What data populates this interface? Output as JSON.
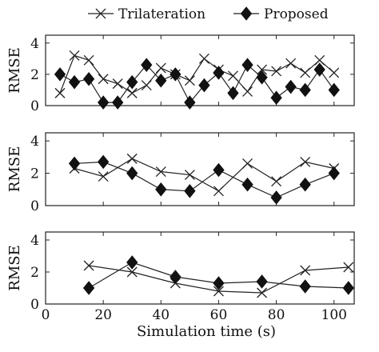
{
  "chart_data": {
    "type": "line",
    "xlabel": "Simulation time (s)",
    "x_ticks": [
      0,
      20,
      40,
      60,
      80,
      100
    ],
    "xlim": [
      0,
      107
    ],
    "legend": {
      "placement": "top-center",
      "entries": [
        {
          "name": "Trilateration",
          "marker": "cross"
        },
        {
          "name": "Proposed",
          "marker": "diamond"
        }
      ]
    },
    "panels": [
      {
        "ylabel": "RMSE",
        "ylim": [
          0,
          4.5
        ],
        "y_ticks": [
          0,
          2,
          4
        ],
        "series": [
          {
            "name": "Trilateration",
            "marker": "cross",
            "x": [
              5,
              10,
              15,
              20,
              25,
              30,
              35,
              40,
              45,
              50,
              55,
              60,
              65,
              70,
              75,
              80,
              85,
              90,
              95,
              100
            ],
            "y": [
              0.8,
              3.2,
              2.9,
              1.7,
              1.4,
              0.8,
              1.3,
              2.4,
              2.0,
              1.6,
              3.0,
              2.3,
              1.9,
              0.9,
              2.3,
              2.2,
              2.7,
              2.1,
              2.9,
              2.1
            ]
          },
          {
            "name": "Proposed",
            "marker": "diamond",
            "x": [
              5,
              10,
              15,
              20,
              25,
              30,
              35,
              40,
              45,
              50,
              55,
              60,
              65,
              70,
              75,
              80,
              85,
              90,
              95,
              100
            ],
            "y": [
              2.0,
              1.5,
              1.7,
              0.2,
              0.2,
              1.5,
              2.6,
              1.6,
              2.0,
              0.2,
              1.3,
              2.1,
              0.8,
              2.6,
              1.8,
              0.5,
              1.2,
              1.0,
              2.3,
              1.0
            ]
          }
        ]
      },
      {
        "ylabel": "RMSE",
        "ylim": [
          0,
          4.5
        ],
        "y_ticks": [
          0,
          2,
          4
        ],
        "series": [
          {
            "name": "Trilateration",
            "marker": "cross",
            "x": [
              10,
              20,
              30,
              40,
              50,
              60,
              70,
              80,
              90,
              100
            ],
            "y": [
              2.3,
              1.8,
              2.9,
              2.1,
              1.9,
              0.9,
              2.6,
              1.5,
              2.7,
              2.3
            ]
          },
          {
            "name": "Proposed",
            "marker": "diamond",
            "x": [
              10,
              20,
              30,
              40,
              50,
              60,
              70,
              80,
              90,
              100
            ],
            "y": [
              2.6,
              2.7,
              2.0,
              1.0,
              0.9,
              2.2,
              1.3,
              0.5,
              1.3,
              2.0
            ]
          }
        ]
      },
      {
        "ylabel": "RMSE",
        "ylim": [
          0,
          4.5
        ],
        "y_ticks": [
          0,
          2,
          4
        ],
        "series": [
          {
            "name": "Trilateration",
            "marker": "cross",
            "x": [
              15,
              30,
              45,
              60,
              75,
              90,
              105
            ],
            "y": [
              2.4,
              2.0,
              1.3,
              0.8,
              0.7,
              2.1,
              2.3
            ]
          },
          {
            "name": "Proposed",
            "marker": "diamond",
            "x": [
              15,
              30,
              45,
              60,
              75,
              90,
              105
            ],
            "y": [
              1.0,
              2.6,
              1.7,
              1.3,
              1.4,
              1.1,
              1.0
            ]
          }
        ]
      }
    ]
  }
}
